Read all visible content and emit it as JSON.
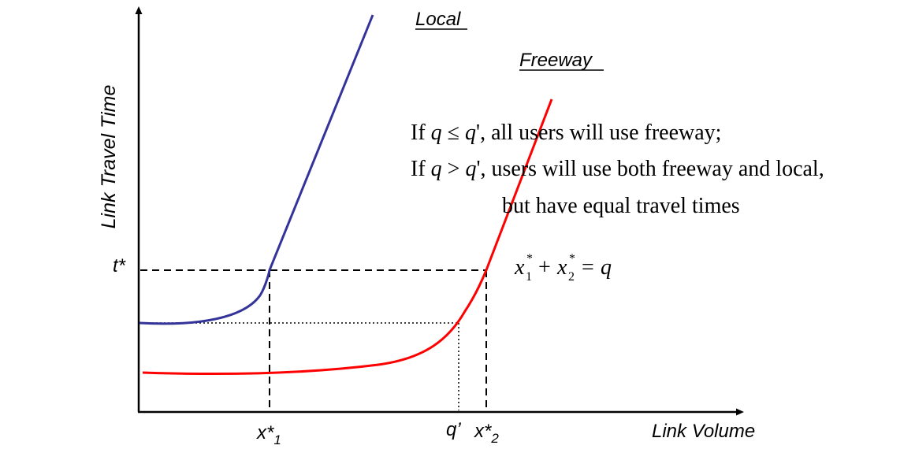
{
  "labels": {
    "y_axis": "Link Travel Time",
    "x_axis": "Link Volume",
    "t_star": "t*",
    "local": "Local",
    "freeway": "Freeway",
    "x1_base": "x*",
    "x1_sub": "1",
    "q_prime": "q’",
    "x2_base": "x*",
    "x2_sub": "2"
  },
  "annotations": {
    "line1": {
      "pre": "If ",
      "q": "q",
      "op": " ≤ ",
      "qp": "q",
      "prime": "'",
      "post": ", all users will use freeway;"
    },
    "line2": {
      "pre": "If ",
      "q": "q",
      "op": " > ",
      "qp": "q",
      "prime": "'",
      "post": ", users will use both freeway and local,"
    },
    "line3": "but have equal travel times"
  },
  "equation": {
    "x": "x",
    "star": "*",
    "sub1": "1",
    "sub2": "2",
    "plus": "+",
    "equals": "=",
    "q": "q"
  },
  "colors": {
    "local_curve": "#333399",
    "freeway_curve": "#ff0000",
    "axis": "#000000"
  }
}
